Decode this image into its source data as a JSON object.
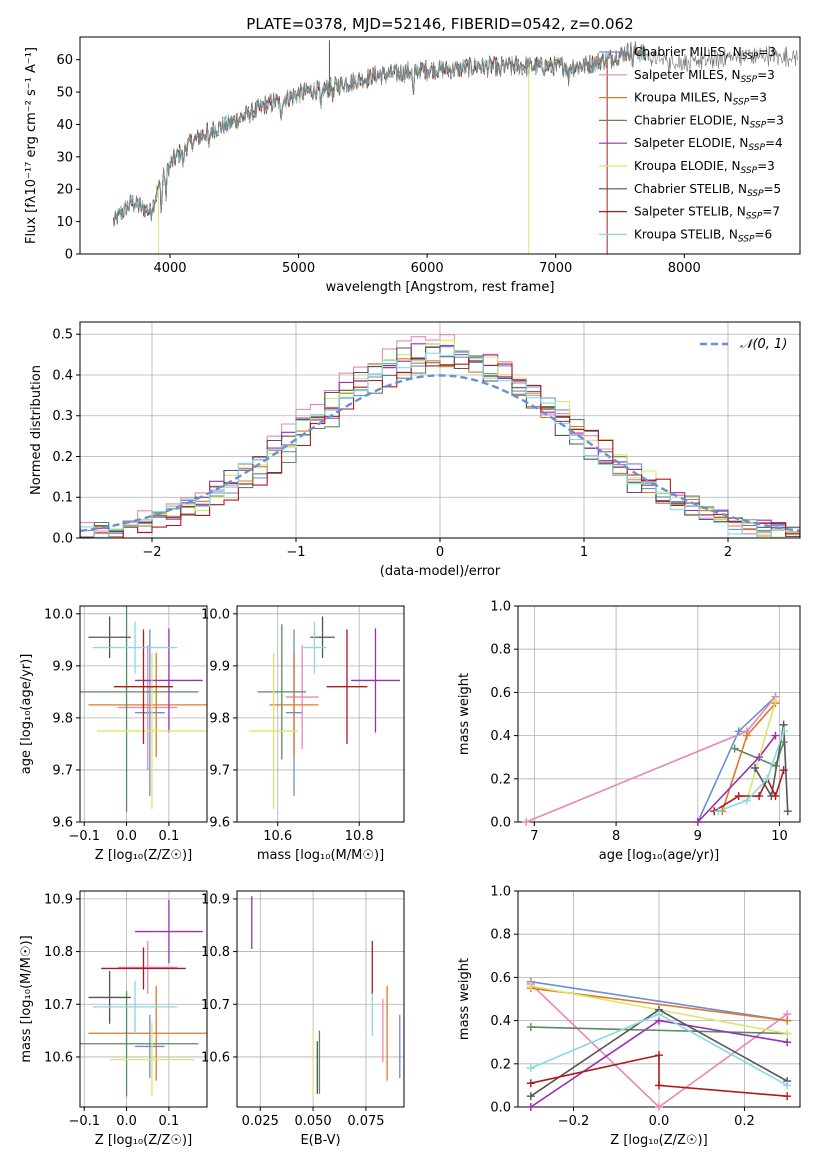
{
  "colors": {
    "Chabrier MILES": "#6a8fd6",
    "Salpeter MILES": "#e887b9",
    "Kroupa MILES": "#e0782a",
    "Chabrier ELODIE": "#5b8a5f",
    "Salpeter ELODIE": "#9b2fb0",
    "Kroupa ELODIE": "#d8e86a",
    "Chabrier STELIB": "#555555",
    "Salpeter STELIB": "#b01a1a",
    "Kroupa STELIB": "#86dbe0",
    "gauss": "#6a8fd6"
  },
  "chart_data": [
    {
      "id": "spectrum",
      "type": "line",
      "title": "PLATE=0378, MJD=52146, FIBERID=0542, z=0.062",
      "xlabel": "wavelength [Angstrom, rest frame]",
      "ylabel": "Flux [fλ10⁻¹⁷ erg cm⁻² s⁻¹ A⁻¹]",
      "xlim": [
        3300,
        8900
      ],
      "ylim": [
        0,
        67
      ],
      "xticks": [
        4000,
        5000,
        6000,
        7000,
        8000
      ],
      "yticks": [
        0,
        10,
        20,
        30,
        40,
        50,
        60
      ],
      "grid": false,
      "legend_position": "right",
      "legend": [
        {
          "model": "Chabrier MILES",
          "label": "Chabrier MILES, N",
          "sub": "SSP",
          "n": "=3"
        },
        {
          "model": "Salpeter MILES",
          "label": "Salpeter MILES, N",
          "sub": "SSP",
          "n": "=3"
        },
        {
          "model": "Kroupa MILES",
          "label": "Kroupa MILES, N",
          "sub": "SSP",
          "n": "=3"
        },
        {
          "model": "Chabrier ELODIE",
          "label": "Chabrier ELODIE, N",
          "sub": "SSP",
          "n": "=3"
        },
        {
          "model": "Salpeter ELODIE",
          "label": "Salpeter ELODIE, N",
          "sub": "SSP",
          "n": "=4"
        },
        {
          "model": "Kroupa ELODIE",
          "label": "Kroupa ELODIE, N",
          "sub": "SSP",
          "n": "=3"
        },
        {
          "model": "Chabrier STELIB",
          "label": "Chabrier STELIB, N",
          "sub": "SSP",
          "n": "=5"
        },
        {
          "model": "Salpeter STELIB",
          "label": "Salpeter STELIB, N",
          "sub": "SSP",
          "n": "=7"
        },
        {
          "model": "Kroupa STELIB",
          "label": "Kroupa STELIB, N",
          "sub": "SSP",
          "n": "=6"
        }
      ],
      "continuum": {
        "x": [
          3560,
          3700,
          3850,
          3950,
          4050,
          4150,
          4300,
          4450,
          4600,
          4750,
          4900,
          5050,
          5200,
          5400,
          5600,
          5800,
          6000,
          6200,
          6400,
          6600,
          6800,
          7000,
          7200,
          7400,
          7600,
          7800,
          8000,
          8200,
          8400,
          8600,
          8800
        ],
        "y": [
          10,
          16,
          13,
          25,
          30,
          34,
          38,
          40,
          43,
          46,
          48,
          50,
          51,
          53,
          55,
          56,
          57,
          57,
          58,
          58,
          58,
          58,
          58,
          60,
          63,
          60,
          59,
          60,
          61,
          61,
          61
        ]
      },
      "absorption_lines": [
        {
          "x": 3934,
          "depth": 9
        },
        {
          "x": 3968,
          "depth": 8
        },
        {
          "x": 4102,
          "depth": 4
        },
        {
          "x": 4304,
          "depth": 6
        },
        {
          "x": 4861,
          "depth": 6
        },
        {
          "x": 5175,
          "depth": 7
        },
        {
          "x": 5270,
          "depth": 3
        },
        {
          "x": 5893,
          "depth": 8
        },
        {
          "x": 6563,
          "depth": 3
        },
        {
          "x": 7100,
          "depth": 4
        },
        {
          "x": 7600,
          "depth": 4
        }
      ],
      "spikes": [
        {
          "x": 3910,
          "y": 0,
          "model": "Kroupa ELODIE"
        },
        {
          "x": 5240,
          "y": 66,
          "model": "Chabrier STELIB"
        },
        {
          "x": 6790,
          "y": 0,
          "model": "Kroupa ELODIE"
        },
        {
          "x": 7400,
          "y": 0,
          "model": "Salpeter STELIB"
        }
      ]
    },
    {
      "id": "residuals",
      "type": "step",
      "xlabel": "(data-model)/error",
      "ylabel": "Normed distribution",
      "xlim": [
        -2.5,
        2.5
      ],
      "ylim": [
        0,
        0.53
      ],
      "xticks": [
        -2,
        -1,
        0,
        1,
        2
      ],
      "xtick_labels": [
        "−2",
        "−1",
        "0",
        "1",
        "2"
      ],
      "yticks": [
        0,
        0.1,
        0.2,
        0.3,
        0.4,
        0.5
      ],
      "ytick_labels": [
        "0.0",
        "0.1",
        "0.2",
        "0.3",
        "0.4",
        "0.5"
      ],
      "grid": true,
      "legend": [
        {
          "label": "𝒩(0, 1)"
        }
      ],
      "bin_width": 0.1,
      "series": [
        {
          "model": "Chabrier MILES",
          "offset": 0.03,
          "amp": 0.45
        },
        {
          "model": "Salpeter MILES",
          "offset": -0.05,
          "amp": 0.48
        },
        {
          "model": "Kroupa MILES",
          "offset": 0.0,
          "amp": 0.44
        },
        {
          "model": "Chabrier ELODIE",
          "offset": 0.06,
          "amp": 0.43
        },
        {
          "model": "Salpeter ELODIE",
          "offset": -0.02,
          "amp": 0.46
        },
        {
          "model": "Kroupa ELODIE",
          "offset": 0.02,
          "amp": 0.47
        },
        {
          "model": "Chabrier STELIB",
          "offset": -0.08,
          "amp": 0.45
        },
        {
          "model": "Salpeter STELIB",
          "offset": 0.09,
          "amp": 0.44
        },
        {
          "model": "Kroupa STELIB",
          "offset": -0.04,
          "amp": 0.45
        }
      ]
    },
    {
      "id": "z-age",
      "type": "errorbar",
      "xlabel": "Z [log₁₀(Z/Z☉)]",
      "ylabel": "age  [log₁₀(age/yr)]",
      "xlim": [
        -0.11,
        0.19
      ],
      "ylim": [
        9.6,
        10.015
      ],
      "xticks": [
        -0.1,
        0.0,
        0.1
      ],
      "xtick_labels": [
        "−0.1",
        "0.0",
        "0.1"
      ],
      "yticks": [
        9.6,
        9.7,
        9.8,
        9.9,
        10.0
      ],
      "ytick_labels": [
        "9.6",
        "9.7",
        "9.8",
        "9.9",
        "10.0"
      ],
      "grid": true,
      "points": [
        {
          "model": "Chabrier MILES",
          "x": 0.055,
          "y": 9.81,
          "xerr": 0.035,
          "yerr": 0.16
        },
        {
          "model": "Salpeter MILES",
          "x": 0.05,
          "y": 9.82,
          "xerr": 0.07,
          "yerr": 0.12
        },
        {
          "model": "Kroupa MILES",
          "x": 0.07,
          "y": 9.825,
          "xerr": 0.16,
          "yerr": 0.1
        },
        {
          "model": "Chabrier ELODIE",
          "x": 0.0,
          "y": 9.85,
          "xerr": 0.17,
          "yerr": 0.23
        },
        {
          "model": "Salpeter ELODIE",
          "x": 0.1,
          "y": 9.872,
          "xerr": 0.08,
          "yerr": 0.1
        },
        {
          "model": "Kroupa ELODIE",
          "x": 0.06,
          "y": 9.775,
          "xerr": 0.13,
          "yerr": 0.15
        },
        {
          "model": "Chabrier STELIB",
          "x": -0.04,
          "y": 9.955,
          "xerr": 0.05,
          "yerr": 0.04
        },
        {
          "model": "Salpeter STELIB",
          "x": 0.04,
          "y": 9.86,
          "xerr": 0.07,
          "yerr": 0.11
        },
        {
          "model": "Kroupa STELIB",
          "x": 0.02,
          "y": 9.935,
          "xerr": 0.1,
          "yerr": 0.05
        }
      ]
    },
    {
      "id": "mass-age",
      "type": "errorbar",
      "xlabel": "mass [log₁₀(M/M☉)]",
      "ylabel": "",
      "xlim": [
        10.5,
        10.91
      ],
      "ylim": [
        9.6,
        10.015
      ],
      "xticks": [
        10.6,
        10.8
      ],
      "xtick_labels": [
        "10.6",
        "10.8"
      ],
      "yticks": [
        9.6,
        9.7,
        9.8,
        9.9,
        10.0
      ],
      "ytick_labels": [
        "9.6",
        "9.7",
        "9.8",
        "9.9",
        "10.0"
      ],
      "grid": true,
      "points": [
        {
          "model": "Chabrier MILES",
          "x": 10.64,
          "y": 9.81,
          "xerr": 0.02,
          "yerr": 0.16
        },
        {
          "model": "Salpeter MILES",
          "x": 10.66,
          "y": 9.84,
          "xerr": 0.04,
          "yerr": 0.1
        },
        {
          "model": "Kroupa MILES",
          "x": 10.64,
          "y": 9.825,
          "xerr": 0.06,
          "yerr": 0.1
        },
        {
          "model": "Chabrier ELODIE",
          "x": 10.61,
          "y": 9.85,
          "xerr": 0.06,
          "yerr": 0.13
        },
        {
          "model": "Salpeter ELODIE",
          "x": 10.84,
          "y": 9.872,
          "xerr": 0.06,
          "yerr": 0.1
        },
        {
          "model": "Kroupa ELODIE",
          "x": 10.59,
          "y": 9.775,
          "xerr": 0.06,
          "yerr": 0.15
        },
        {
          "model": "Chabrier STELIB",
          "x": 10.71,
          "y": 9.955,
          "xerr": 0.03,
          "yerr": 0.04
        },
        {
          "model": "Salpeter STELIB",
          "x": 10.77,
          "y": 9.86,
          "xerr": 0.05,
          "yerr": 0.11
        },
        {
          "model": "Kroupa STELIB",
          "x": 10.69,
          "y": 9.935,
          "xerr": 0.03,
          "yerr": 0.05
        }
      ]
    },
    {
      "id": "age-weight",
      "type": "line",
      "xlabel": "age  [log₁₀(age/yr)]",
      "ylabel": "mass weight",
      "xlim": [
        6.8,
        10.25
      ],
      "ylim": [
        0,
        1.0
      ],
      "xticks": [
        7,
        8,
        9,
        10
      ],
      "xtick_labels": [
        "7",
        "8",
        "9",
        "10"
      ],
      "yticks": [
        0,
        0.2,
        0.4,
        0.6,
        0.8,
        1.0
      ],
      "ytick_labels": [
        "0.0",
        "0.2",
        "0.4",
        "0.6",
        "0.8",
        "1.0"
      ],
      "grid": true,
      "series": [
        {
          "model": "Chabrier MILES",
          "x": [
            9.0,
            9.5,
            9.95
          ],
          "y": [
            0.0,
            0.42,
            0.58
          ]
        },
        {
          "model": "Salpeter MILES",
          "x": [
            6.9,
            9.6,
            9.95
          ],
          "y": [
            0.0,
            0.42,
            0.58
          ]
        },
        {
          "model": "Kroupa MILES",
          "x": [
            9.3,
            9.6,
            9.95
          ],
          "y": [
            0.05,
            0.4,
            0.55
          ]
        },
        {
          "model": "Chabrier ELODIE",
          "x": [
            9.45,
            9.95,
            10.05
          ],
          "y": [
            0.34,
            0.26,
            0.37
          ]
        },
        {
          "model": "Salpeter ELODIE",
          "x": [
            9.0,
            9.75,
            9.95
          ],
          "y": [
            0.0,
            0.3,
            0.4
          ]
        },
        {
          "model": "Kroupa ELODIE",
          "x": [
            9.6,
            9.95
          ],
          "y": [
            0.1,
            0.56
          ]
        },
        {
          "model": "Chabrier STELIB",
          "x": [
            9.7,
            9.9,
            10.05,
            10.1
          ],
          "y": [
            0.25,
            0.12,
            0.45,
            0.05
          ]
        },
        {
          "model": "Salpeter STELIB",
          "x": [
            9.2,
            9.5,
            9.75,
            9.85,
            9.95,
            10.05
          ],
          "y": [
            0.05,
            0.12,
            0.12,
            0.2,
            0.12,
            0.24
          ]
        },
        {
          "model": "Kroupa STELIB",
          "x": [
            9.25,
            9.6,
            9.85,
            10.05
          ],
          "y": [
            0.05,
            0.1,
            0.2,
            0.42
          ]
        }
      ]
    },
    {
      "id": "z-mass",
      "type": "errorbar",
      "xlabel": "Z [log₁₀(Z/Z☉)]",
      "ylabel": "mass [log₁₀(M/M☉)]",
      "xlim": [
        -0.11,
        0.19
      ],
      "ylim": [
        10.505,
        10.915
      ],
      "xticks": [
        -0.1,
        0.0,
        0.1
      ],
      "xtick_labels": [
        "−0.1",
        "0.0",
        "0.1"
      ],
      "yticks": [
        10.6,
        10.7,
        10.8,
        10.9
      ],
      "ytick_labels": [
        "10.6",
        "10.7",
        "10.8",
        "10.9"
      ],
      "grid": true,
      "points": [
        {
          "model": "Chabrier MILES",
          "x": 0.055,
          "y": 10.62,
          "xerr": 0.035,
          "yerr": 0.06
        },
        {
          "model": "Salpeter MILES",
          "x": 0.05,
          "y": 10.77,
          "xerr": 0.07,
          "yerr": 0.05
        },
        {
          "model": "Kroupa MILES",
          "x": 0.07,
          "y": 10.645,
          "xerr": 0.16,
          "yerr": 0.09
        },
        {
          "model": "Chabrier ELODIE",
          "x": 0.0,
          "y": 10.625,
          "xerr": 0.17,
          "yerr": 0.1
        },
        {
          "model": "Salpeter ELODIE",
          "x": 0.1,
          "y": 10.838,
          "xerr": 0.08,
          "yerr": 0.06
        },
        {
          "model": "Kroupa ELODIE",
          "x": 0.06,
          "y": 10.595,
          "xerr": 0.1,
          "yerr": 0.07
        },
        {
          "model": "Chabrier STELIB",
          "x": -0.04,
          "y": 10.713,
          "xerr": 0.05,
          "yerr": 0.05
        },
        {
          "model": "Salpeter STELIB",
          "x": 0.04,
          "y": 10.768,
          "xerr": 0.1,
          "yerr": 0.04
        },
        {
          "model": "Kroupa STELIB",
          "x": 0.02,
          "y": 10.695,
          "xerr": 0.1,
          "yerr": 0.05
        }
      ]
    },
    {
      "id": "ebv-mass",
      "type": "errorbar",
      "xlabel": "E(B-V)",
      "ylabel": "",
      "xlim": [
        0.014,
        0.093
      ],
      "ylim": [
        10.505,
        10.915
      ],
      "xticks": [
        0.025,
        0.05,
        0.075
      ],
      "xtick_labels": [
        "0.025",
        "0.050",
        "0.075"
      ],
      "yticks": [
        10.6,
        10.7,
        10.8,
        10.9
      ],
      "ytick_labels": [
        "10.6",
        "10.7",
        "10.8",
        "10.9"
      ],
      "grid": true,
      "points": [
        {
          "model": "Chabrier MILES",
          "x": 0.091,
          "y": 10.62,
          "xerr": 0.0,
          "yerr": 0.06
        },
        {
          "model": "Salpeter MILES",
          "x": 0.083,
          "y": 10.65,
          "xerr": 0.0,
          "yerr": 0.06
        },
        {
          "model": "Kroupa MILES",
          "x": 0.085,
          "y": 10.645,
          "xerr": 0.0,
          "yerr": 0.09
        },
        {
          "model": "Chabrier ELODIE",
          "x": 0.053,
          "y": 10.59,
          "xerr": 0.0,
          "yerr": 0.06
        },
        {
          "model": "Salpeter ELODIE",
          "x": 0.021,
          "y": 10.855,
          "xerr": 0.0,
          "yerr": 0.05
        },
        {
          "model": "Kroupa ELODIE",
          "x": 0.05,
          "y": 10.585,
          "xerr": 0.0,
          "yerr": 0.06
        },
        {
          "model": "Chabrier STELIB",
          "x": 0.052,
          "y": 10.58,
          "xerr": 0.0,
          "yerr": 0.05
        },
        {
          "model": "Salpeter STELIB",
          "x": 0.078,
          "y": 10.77,
          "xerr": 0.0,
          "yerr": 0.05
        },
        {
          "model": "Kroupa STELIB",
          "x": 0.078,
          "y": 10.68,
          "xerr": 0.0,
          "yerr": 0.04
        }
      ]
    },
    {
      "id": "z-weight",
      "type": "line",
      "xlabel": "Z [log₁₀(Z/Z☉)]",
      "ylabel": "mass weight",
      "xlim": [
        -0.33,
        0.33
      ],
      "ylim": [
        0,
        1.0
      ],
      "xticks": [
        -0.2,
        0.0,
        0.2
      ],
      "xtick_labels": [
        "−0.2",
        "0.0",
        "0.2"
      ],
      "yticks": [
        0,
        0.2,
        0.4,
        0.6,
        0.8,
        1.0
      ],
      "ytick_labels": [
        "0.0",
        "0.2",
        "0.4",
        "0.6",
        "0.8",
        "1.0"
      ],
      "grid": true,
      "series": [
        {
          "model": "Chabrier MILES",
          "x": [
            -0.3,
            0.3
          ],
          "y": [
            0.58,
            0.4
          ]
        },
        {
          "model": "Salpeter MILES",
          "x": [
            -0.3,
            0.0,
            0.3
          ],
          "y": [
            0.57,
            0.0,
            0.43
          ]
        },
        {
          "model": "Kroupa MILES",
          "x": [
            -0.3,
            0.3
          ],
          "y": [
            0.55,
            0.4
          ]
        },
        {
          "model": "Chabrier ELODIE",
          "x": [
            -0.3,
            0.3
          ],
          "y": [
            0.37,
            0.34
          ]
        },
        {
          "model": "Salpeter ELODIE",
          "x": [
            -0.3,
            0.0,
            0.3
          ],
          "y": [
            0.0,
            0.4,
            0.3
          ]
        },
        {
          "model": "Kroupa ELODIE",
          "x": [
            -0.3,
            0.3
          ],
          "y": [
            0.56,
            0.34
          ]
        },
        {
          "model": "Chabrier STELIB",
          "x": [
            -0.3,
            0.0,
            0.3
          ],
          "y": [
            0.05,
            0.45,
            0.12
          ]
        },
        {
          "model": "Salpeter STELIB",
          "x": [
            -0.3,
            0.0,
            0.0,
            0.3
          ],
          "y": [
            0.11,
            0.24,
            0.1,
            0.05
          ]
        },
        {
          "model": "Kroupa STELIB",
          "x": [
            -0.3,
            0.0,
            0.3
          ],
          "y": [
            0.18,
            0.43,
            0.1
          ]
        }
      ]
    }
  ]
}
